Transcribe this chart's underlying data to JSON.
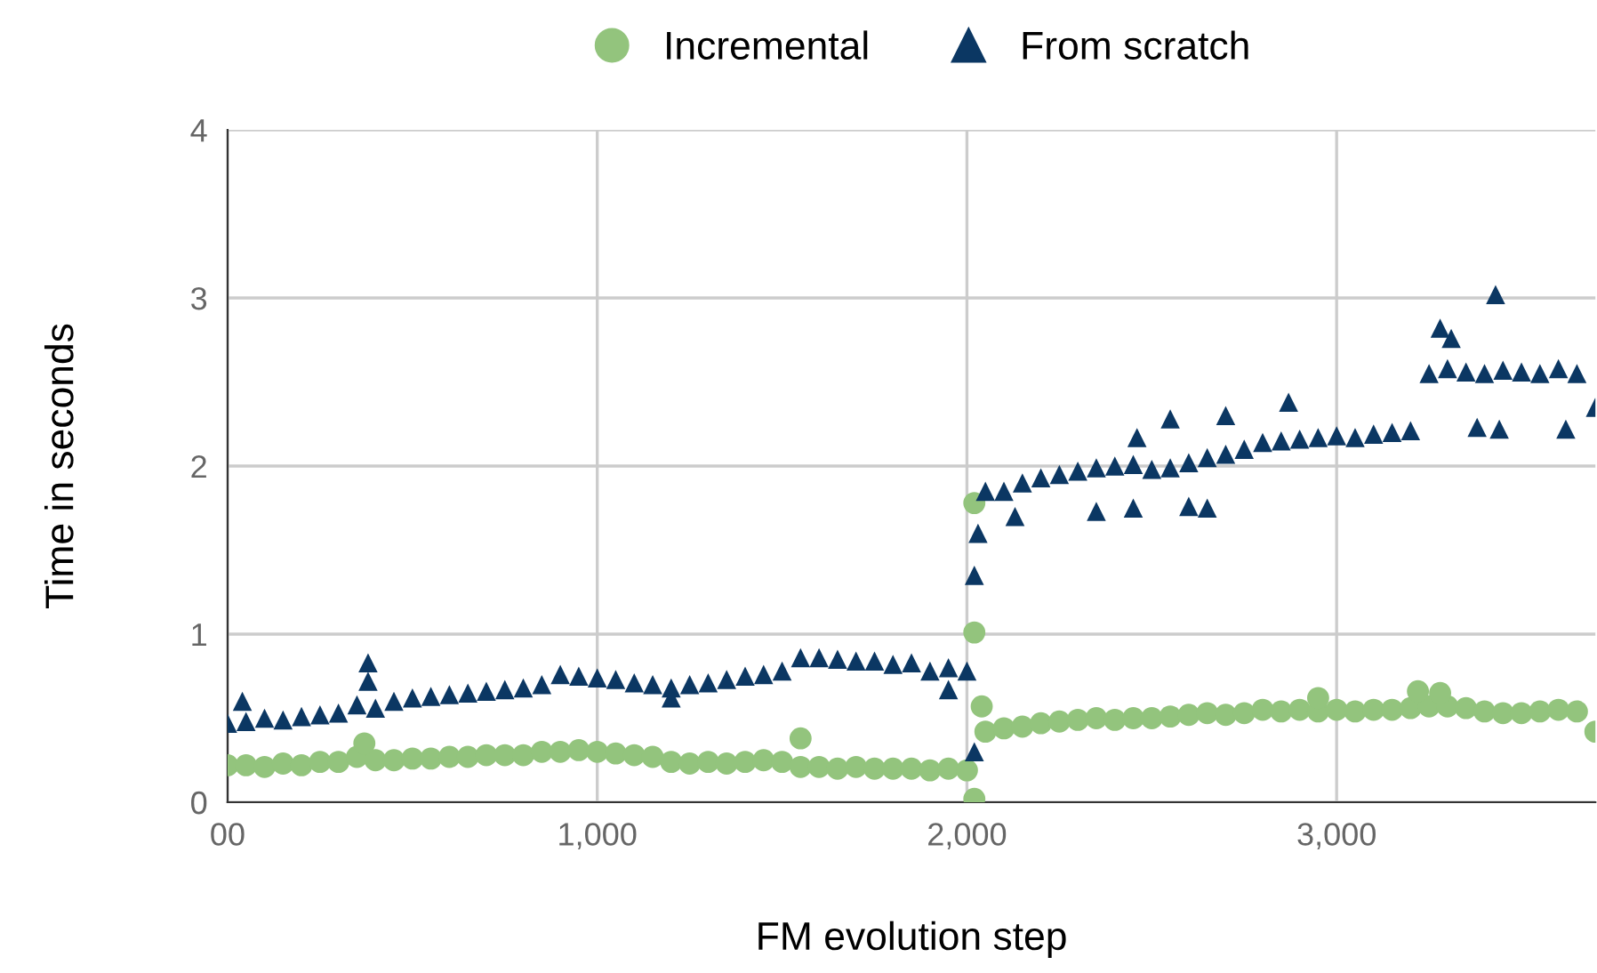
{
  "chart_data": {
    "type": "scatter",
    "xlabel": "FM evolution step",
    "ylabel": "Time in seconds",
    "xlim": [
      0,
      3700
    ],
    "xticks": [
      {
        "value": 0,
        "label": "00"
      },
      {
        "value": 1000,
        "label": "1,000"
      },
      {
        "value": 2000,
        "label": "2,000"
      },
      {
        "value": 3000,
        "label": "3,000"
      }
    ],
    "ylim": [
      0,
      4
    ],
    "yticks": [
      0,
      1,
      2,
      3,
      4
    ],
    "grid": true,
    "legend": "top",
    "series": [
      {
        "name": "Incremental",
        "color": "#93c47d",
        "marker": "circle",
        "x": [
          0,
          50,
          100,
          150,
          200,
          250,
          300,
          350,
          400,
          450,
          500,
          550,
          600,
          650,
          700,
          750,
          800,
          850,
          900,
          950,
          1000,
          1050,
          1100,
          1150,
          1200,
          1250,
          1300,
          1350,
          1400,
          1450,
          1500,
          1550,
          1600,
          1650,
          1700,
          1750,
          1800,
          1850,
          1900,
          1950,
          2000,
          2050,
          2100,
          2150,
          2200,
          2250,
          2300,
          2350,
          2400,
          2450,
          2500,
          2550,
          2600,
          2650,
          2700,
          2750,
          2800,
          2850,
          2900,
          2950,
          3000,
          3050,
          3100,
          3150,
          3200,
          3250,
          3300,
          3350,
          3400,
          3450,
          3500,
          3550,
          3600,
          3650,
          3700,
          370,
          1550,
          2020,
          2020,
          2020,
          2040,
          3220,
          3280,
          2950
        ],
        "values": [
          0.22,
          0.22,
          0.21,
          0.23,
          0.22,
          0.24,
          0.24,
          0.27,
          0.25,
          0.25,
          0.26,
          0.26,
          0.27,
          0.27,
          0.28,
          0.28,
          0.28,
          0.3,
          0.3,
          0.31,
          0.3,
          0.29,
          0.28,
          0.27,
          0.24,
          0.23,
          0.24,
          0.23,
          0.24,
          0.25,
          0.24,
          0.21,
          0.21,
          0.2,
          0.21,
          0.2,
          0.2,
          0.2,
          0.19,
          0.2,
          0.19,
          0.42,
          0.44,
          0.45,
          0.47,
          0.48,
          0.49,
          0.5,
          0.49,
          0.5,
          0.5,
          0.51,
          0.52,
          0.53,
          0.52,
          0.53,
          0.55,
          0.54,
          0.55,
          0.54,
          0.55,
          0.54,
          0.55,
          0.55,
          0.56,
          0.57,
          0.57,
          0.56,
          0.54,
          0.53,
          0.53,
          0.54,
          0.55,
          0.54,
          0.42,
          0.35,
          0.38,
          1.78,
          1.01,
          0.02,
          0.57,
          0.66,
          0.65,
          0.62
        ]
      },
      {
        "name": "From scratch",
        "color": "#0b3763",
        "marker": "triangle",
        "x": [
          0,
          50,
          100,
          150,
          200,
          250,
          300,
          350,
          400,
          450,
          500,
          550,
          600,
          650,
          700,
          750,
          800,
          850,
          900,
          950,
          1000,
          1050,
          1100,
          1150,
          1200,
          1250,
          1300,
          1350,
          1400,
          1450,
          1500,
          1550,
          1600,
          1650,
          1700,
          1750,
          1800,
          1850,
          1900,
          1950,
          2000,
          2050,
          2100,
          2150,
          2200,
          2250,
          2300,
          2350,
          2400,
          2450,
          2500,
          2550,
          2600,
          2650,
          2700,
          2750,
          2800,
          2850,
          2900,
          2950,
          3000,
          3050,
          3100,
          3150,
          3200,
          3250,
          3300,
          3350,
          3400,
          3450,
          3500,
          3550,
          3600,
          3650,
          3700,
          40,
          380,
          380,
          1200,
          1950,
          2020,
          2020,
          2030,
          2130,
          2350,
          2450,
          2600,
          2650,
          3280,
          3310,
          3430,
          3380,
          3440,
          3620,
          2550,
          2700,
          2870,
          2460
        ],
        "values": [
          0.47,
          0.48,
          0.5,
          0.49,
          0.51,
          0.52,
          0.53,
          0.58,
          0.56,
          0.6,
          0.62,
          0.63,
          0.64,
          0.65,
          0.66,
          0.67,
          0.68,
          0.7,
          0.76,
          0.75,
          0.74,
          0.73,
          0.71,
          0.7,
          0.68,
          0.7,
          0.71,
          0.73,
          0.75,
          0.76,
          0.78,
          0.86,
          0.86,
          0.85,
          0.84,
          0.84,
          0.82,
          0.83,
          0.78,
          0.8,
          0.78,
          1.85,
          1.85,
          1.9,
          1.93,
          1.95,
          1.97,
          1.99,
          2.0,
          2.01,
          1.98,
          1.99,
          2.02,
          2.05,
          2.07,
          2.1,
          2.14,
          2.15,
          2.16,
          2.17,
          2.18,
          2.17,
          2.19,
          2.2,
          2.21,
          2.55,
          2.58,
          2.56,
          2.55,
          2.57,
          2.56,
          2.55,
          2.58,
          2.55,
          2.35,
          0.6,
          0.83,
          0.72,
          0.62,
          0.67,
          0.3,
          1.35,
          1.6,
          1.7,
          1.73,
          1.75,
          1.76,
          1.75,
          2.82,
          2.76,
          3.02,
          2.23,
          2.22,
          2.22,
          2.28,
          2.3,
          2.38,
          2.17
        ]
      }
    ]
  }
}
